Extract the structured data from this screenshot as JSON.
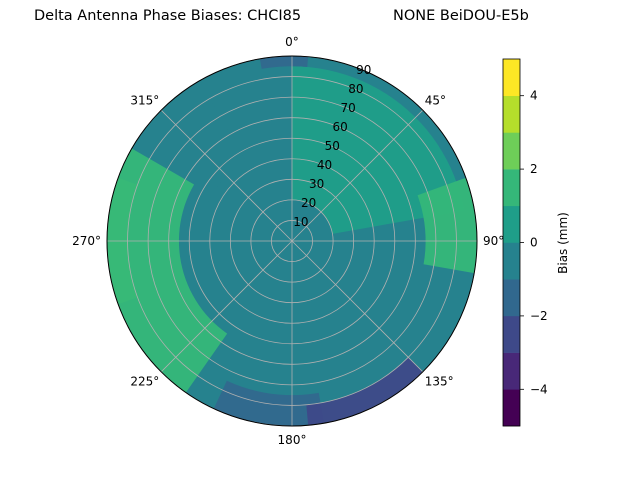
{
  "figure": {
    "title_left": "Delta Antenna Phase Biases: CHCI85",
    "title_right": "NONE BeiDOU-E5b"
  },
  "chart_data": {
    "type": "heatmap",
    "projection": "polar",
    "title": "Delta Antenna Phase Biases: CHCI85",
    "subtitle": "NONE BeiDOU-E5b",
    "theta_direction": "clockwise",
    "theta_zero": "north",
    "theta_tick_labels": [
      "0°",
      "45°",
      "90°",
      "135°",
      "180°",
      "225°",
      "270°",
      "315°"
    ],
    "radial_ticks": [
      10,
      20,
      30,
      40,
      50,
      60,
      70,
      80,
      90
    ],
    "radial_tick_labels": [
      "10",
      "20",
      "30",
      "40",
      "50",
      "60",
      "70",
      "80",
      "90"
    ],
    "rlim": [
      0,
      90
    ],
    "grid": true,
    "colorbar": {
      "label": "Bias (mm)",
      "range": [
        -5,
        5
      ],
      "levels": [
        -5,
        -4,
        -3,
        -2,
        -1,
        0,
        1,
        2,
        3,
        4,
        5
      ],
      "tick_values": [
        -4,
        -2,
        0,
        2,
        4
      ],
      "tick_labels": [
        "−4",
        "−2",
        "0",
        "2",
        "4"
      ],
      "colors": [
        "#440154",
        "#482878",
        "#3e4989",
        "#31688e",
        "#26828e",
        "#1f9e89",
        "#35b779",
        "#6ece58",
        "#b5de2b",
        "#fde725"
      ],
      "colormap": "viridis"
    },
    "dominant_level_range": [
      -1,
      0
    ],
    "regions": [
      {
        "theta_range": [
          280,
          330
        ],
        "r_range": [
          45,
          90
        ],
        "bias_range": [
          -1,
          0
        ]
      },
      {
        "theta_range": [
          0,
          80
        ],
        "r_range": [
          20,
          85
        ],
        "bias_range": [
          0,
          1
        ]
      },
      {
        "theta_range": [
          70,
          100
        ],
        "r_range": [
          65,
          90
        ],
        "bias_range": [
          1,
          2
        ]
      },
      {
        "theta_range": [
          250,
          290
        ],
        "r_range": [
          80,
          90
        ],
        "bias_range": [
          2,
          3
        ]
      },
      {
        "theta_range": [
          215,
          300
        ],
        "r_range": [
          55,
          90
        ],
        "bias_range": [
          1,
          2
        ]
      },
      {
        "theta_range": [
          170,
          205
        ],
        "r_range": [
          75,
          90
        ],
        "bias_range": [
          -2,
          -1
        ]
      },
      {
        "theta_range": [
          135,
          175
        ],
        "r_range": [
          80,
          90
        ],
        "bias_range": [
          -3,
          -2
        ]
      },
      {
        "theta_range": [
          350,
          5
        ],
        "r_range": [
          85,
          90
        ],
        "bias_range": [
          -2,
          -1
        ]
      }
    ]
  }
}
